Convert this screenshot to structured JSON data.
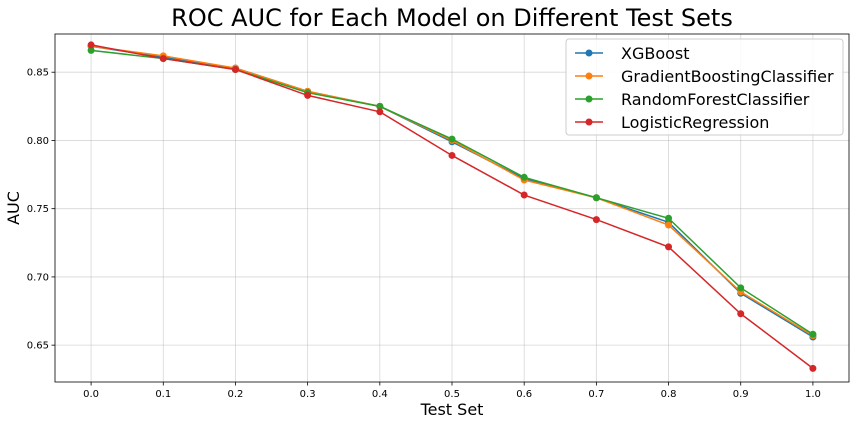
{
  "chart_data": {
    "type": "line",
    "title": "ROC AUC for Each Model on Different Test Sets",
    "xlabel": "Test Set",
    "ylabel": "AUC",
    "x": [
      0.0,
      0.1,
      0.2,
      0.3,
      0.4,
      0.5,
      0.6,
      0.7,
      0.8,
      0.9,
      1.0
    ],
    "xticks": [
      "0.0",
      "0.1",
      "0.2",
      "0.3",
      "0.4",
      "0.5",
      "0.6",
      "0.7",
      "0.8",
      "0.9",
      "1.0"
    ],
    "yticks": [
      "0.65",
      "0.70",
      "0.75",
      "0.80",
      "0.85"
    ],
    "ytick_values": [
      0.65,
      0.7,
      0.75,
      0.8,
      0.85
    ],
    "xlim": [
      -0.05,
      1.05
    ],
    "ylim": [
      0.623,
      0.878
    ],
    "grid": true,
    "legend_position": "top-right",
    "series": [
      {
        "name": "XGBoost",
        "color": "#1f77b4",
        "values": [
          0.869,
          0.861,
          0.853,
          0.836,
          0.825,
          0.799,
          0.772,
          0.758,
          0.74,
          0.688,
          0.656
        ]
      },
      {
        "name": "GradientBoostingClassifier",
        "color": "#ff7f0e",
        "values": [
          0.869,
          0.862,
          0.853,
          0.836,
          0.825,
          0.8,
          0.771,
          0.758,
          0.738,
          0.689,
          0.657
        ]
      },
      {
        "name": "RandomForestClassifier",
        "color": "#2ca02c",
        "values": [
          0.866,
          0.86,
          0.852,
          0.835,
          0.825,
          0.801,
          0.773,
          0.758,
          0.743,
          0.692,
          0.658
        ]
      },
      {
        "name": "LogisticRegression",
        "color": "#d62728",
        "values": [
          0.87,
          0.86,
          0.852,
          0.833,
          0.821,
          0.789,
          0.76,
          0.742,
          0.722,
          0.673,
          0.633
        ]
      }
    ]
  }
}
